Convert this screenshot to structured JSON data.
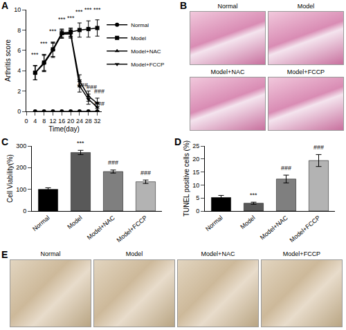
{
  "chart_data": [
    {
      "label": "A",
      "type": "line",
      "xlabel": "Time(day)",
      "ylabel": "Arthritis score",
      "x": [
        4,
        8,
        12,
        16,
        20,
        24,
        28,
        32
      ],
      "xlim": [
        0,
        34
      ],
      "xticks": [
        0,
        4,
        8,
        12,
        16,
        20,
        24,
        28,
        32
      ],
      "ylim": [
        0,
        10
      ],
      "yticks": [
        0,
        2,
        4,
        6,
        8,
        10
      ],
      "legend": "right",
      "series": [
        {
          "name": "Normal",
          "color": "#000000",
          "marker": "circle",
          "values": [
            0,
            0,
            0,
            0,
            0,
            0,
            0,
            0
          ],
          "errors": [
            0,
            0,
            0,
            0,
            0,
            0,
            0,
            0
          ]
        },
        {
          "name": "Model",
          "color": "#000000",
          "marker": "square",
          "values": [
            3.8,
            4.8,
            6.1,
            7.7,
            7.8,
            8.0,
            8.1,
            8.2
          ],
          "errors": [
            0.7,
            0.8,
            0.7,
            0.4,
            0.4,
            0.7,
            0.8,
            0.8
          ]
        },
        {
          "name": "Model+NAC",
          "color": "#000000",
          "marker": "triangle-up",
          "values": [
            3.8,
            4.8,
            6.1,
            7.6,
            7.7,
            3.0,
            1.5,
            0.8
          ],
          "errors": [
            0.7,
            0.8,
            0.7,
            0.4,
            0.4,
            0.6,
            0.5,
            0.5
          ]
        },
        {
          "name": "Model+FCCP",
          "color": "#000000",
          "marker": "triangle-down",
          "values": [
            3.8,
            4.7,
            6.0,
            7.6,
            7.6,
            2.5,
            1.2,
            0.4
          ],
          "errors": [
            0.7,
            0.8,
            0.7,
            0.4,
            0.4,
            0.6,
            0.5,
            0.5
          ]
        }
      ],
      "annotations": [
        {
          "text": "***",
          "x": 4,
          "y": 5.1
        },
        {
          "text": "***",
          "x": 8,
          "y": 6.2
        },
        {
          "text": "***",
          "x": 12,
          "y": 7.4
        },
        {
          "text": "***",
          "x": 16,
          "y": 8.6
        },
        {
          "text": "***",
          "x": 20,
          "y": 8.7
        },
        {
          "text": "***",
          "x": 24,
          "y": 9.3
        },
        {
          "text": "***",
          "x": 28,
          "y": 9.5
        },
        {
          "text": "***",
          "x": 32,
          "y": 9.5
        },
        {
          "text": "###",
          "x": 25.5,
          "y": 2.1
        },
        {
          "text": "###",
          "x": 29.5,
          "y": 1.9
        },
        {
          "text": "###",
          "x": 33,
          "y": 1.5
        },
        {
          "text": "###",
          "x": 33,
          "y": 0.3
        }
      ]
    },
    {
      "label": "C",
      "type": "bar",
      "ylabel": "Cell Viability(%)",
      "categories": [
        "Normal",
        "Model",
        "Model+NAC",
        "Model+FCCP"
      ],
      "values": [
        100,
        270,
        182,
        135
      ],
      "errors": [
        7,
        10,
        7,
        8
      ],
      "colors": [
        "#000000",
        "#595959",
        "#7f7f7f",
        "#b3b3b3"
      ],
      "ylim": [
        0,
        300
      ],
      "yticks": [
        0,
        100,
        200,
        300
      ],
      "annotations": [
        {
          "text": "***",
          "x": 1,
          "y": 292
        },
        {
          "text": "###",
          "x": 2,
          "y": 200
        },
        {
          "text": "###",
          "x": 3,
          "y": 154
        }
      ]
    },
    {
      "label": "D",
      "type": "bar",
      "ylabel": "TUNEL positive cells (%)",
      "categories": [
        "Normal",
        "Model",
        "Model+NAC",
        "Model+FCCP"
      ],
      "values": [
        5.2,
        3.0,
        12.3,
        19.4
      ],
      "errors": [
        0.8,
        0.4,
        1.5,
        2.3
      ],
      "colors": [
        "#000000",
        "#595959",
        "#7f7f7f",
        "#b3b3b3"
      ],
      "ylim": [
        0,
        25
      ],
      "yticks": [
        0,
        5,
        10,
        15,
        20,
        25
      ],
      "annotations": [
        {
          "text": "***",
          "x": 1,
          "y": 4.2
        },
        {
          "text": "###",
          "x": 2,
          "y": 14.5
        },
        {
          "text": "###",
          "x": 3,
          "y": 22.5
        }
      ]
    }
  ],
  "image_panels": [
    {
      "label": "B",
      "captions": [
        "Normal",
        "Model",
        "Model+NAC",
        "Model+FCCP"
      ]
    },
    {
      "label": "E",
      "captions": [
        "Normal",
        "Model",
        "Model+NAC",
        "Model+FCCP"
      ]
    }
  ]
}
